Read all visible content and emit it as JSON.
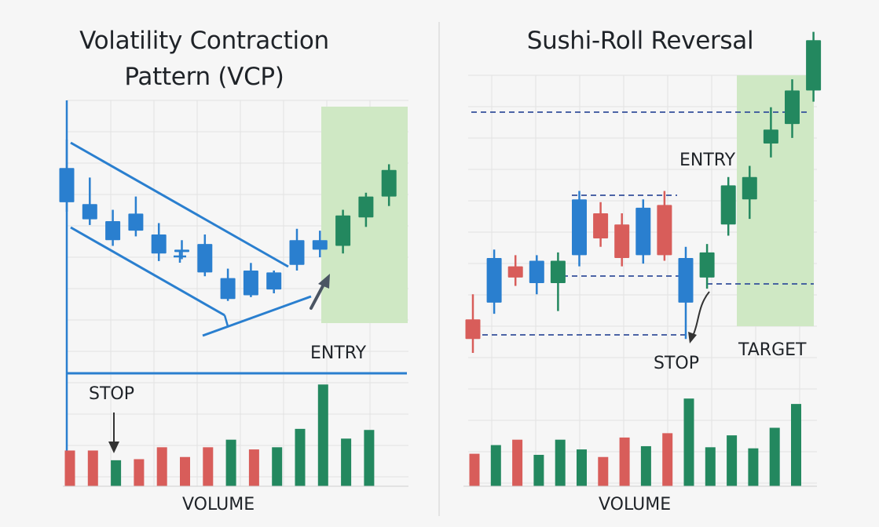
{
  "colors": {
    "blue": "#2a7fcf",
    "green": "#23885f",
    "red": "#d85d5a",
    "line": "#2a7fcf",
    "target_zone": "#cfe8c4",
    "dashed": "#34509a"
  },
  "charts": [
    {
      "id": "vcp",
      "title": "Volatility Contraction Pattern (VCP)",
      "title_lines": [
        "Volatility Contraction",
        "Pattern (VCP)"
      ],
      "labels": {
        "entry": "ENTRY",
        "stop": "STOP",
        "volume": "VOLUME"
      },
      "chart_data": {
        "type": "candlestick",
        "price_range": [
          0,
          100
        ],
        "volume_range": [
          0,
          100
        ],
        "grid": true,
        "candles": [
          {
            "o": 85,
            "h": 100,
            "l": 62,
            "c": 67,
            "color": "blue"
          },
          {
            "o": 66,
            "h": 80,
            "l": 55,
            "c": 58,
            "color": "blue"
          },
          {
            "o": 57,
            "h": 63,
            "l": 44,
            "c": 47,
            "color": "blue"
          },
          {
            "o": 61,
            "h": 70,
            "l": 49,
            "c": 52,
            "color": "blue"
          },
          {
            "o": 50,
            "h": 56,
            "l": 36,
            "c": 40,
            "color": "blue"
          },
          {
            "o": 42,
            "h": 47,
            "l": 37,
            "c": 41,
            "color": "blue"
          },
          {
            "o": 45,
            "h": 50,
            "l": 28,
            "c": 30,
            "color": "blue"
          },
          {
            "o": 27,
            "h": 32,
            "l": 15,
            "c": 16,
            "color": "blue"
          },
          {
            "o": 31,
            "h": 35,
            "l": 17,
            "c": 18,
            "color": "blue"
          },
          {
            "o": 30,
            "h": 31,
            "l": 19,
            "c": 21,
            "color": "blue"
          },
          {
            "o": 47,
            "h": 53,
            "l": 31,
            "c": 34,
            "color": "blue"
          },
          {
            "o": 47,
            "h": 52,
            "l": 38,
            "c": 42,
            "color": "blue"
          },
          {
            "o": 44,
            "h": 63,
            "l": 40,
            "c": 60,
            "color": "green"
          },
          {
            "o": 59,
            "h": 72,
            "l": 54,
            "c": 70,
            "color": "green"
          },
          {
            "o": 70,
            "h": 87,
            "l": 65,
            "c": 84,
            "color": "green"
          }
        ],
        "volume": [
          {
            "v": 33,
            "color": "red"
          },
          {
            "v": 33,
            "color": "red"
          },
          {
            "v": 24,
            "color": "green"
          },
          {
            "v": 25,
            "color": "red"
          },
          {
            "v": 36,
            "color": "red"
          },
          {
            "v": 27,
            "color": "red"
          },
          {
            "v": 36,
            "color": "red"
          },
          {
            "v": 43,
            "color": "green"
          },
          {
            "v": 34,
            "color": "red"
          },
          {
            "v": 36,
            "color": "green"
          },
          {
            "v": 53,
            "color": "green"
          },
          {
            "v": 94,
            "color": "green"
          },
          {
            "v": 44,
            "color": "green"
          },
          {
            "v": 52,
            "color": "green"
          }
        ],
        "annotations": [
          "ENTRY",
          "STOP",
          "VOLUME"
        ]
      }
    },
    {
      "id": "sushi",
      "title": "Sushi-Roll Reversal",
      "labels": {
        "entry": "ENTRY",
        "stop": "STOP",
        "target": "TARGET",
        "volume": "VOLUME"
      },
      "chart_data": {
        "type": "candlestick",
        "price_range": [
          0,
          100
        ],
        "volume_range": [
          0,
          100
        ],
        "grid": true,
        "candles": [
          {
            "o": 12,
            "h": 21,
            "l": 0,
            "c": 5,
            "color": "red"
          },
          {
            "o": 18,
            "h": 37,
            "l": 14,
            "c": 34,
            "color": "blue"
          },
          {
            "o": 31,
            "h": 35,
            "l": 24,
            "c": 27,
            "color": "red"
          },
          {
            "o": 25,
            "h": 35,
            "l": 21,
            "c": 33,
            "color": "blue"
          },
          {
            "o": 25,
            "h": 36,
            "l": 15,
            "c": 33,
            "color": "green"
          },
          {
            "o": 35,
            "h": 58,
            "l": 31,
            "c": 55,
            "color": "blue"
          },
          {
            "o": 50,
            "h": 54,
            "l": 38,
            "c": 41,
            "color": "red"
          },
          {
            "o": 46,
            "h": 50,
            "l": 31,
            "c": 34,
            "color": "red"
          },
          {
            "o": 35,
            "h": 55,
            "l": 32,
            "c": 52,
            "color": "blue"
          },
          {
            "o": 53,
            "h": 58,
            "l": 33,
            "c": 35,
            "color": "red"
          },
          {
            "o": 34,
            "h": 38,
            "l": 5,
            "c": 18,
            "color": "blue"
          },
          {
            "o": 27,
            "h": 39,
            "l": 23,
            "c": 36,
            "color": "green"
          },
          {
            "o": 46,
            "h": 63,
            "l": 42,
            "c": 60,
            "color": "green"
          },
          {
            "o": 55,
            "h": 67,
            "l": 48,
            "c": 63,
            "color": "green"
          },
          {
            "o": 75,
            "h": 88,
            "l": 70,
            "c": 80,
            "color": "green"
          },
          {
            "o": 82,
            "h": 98,
            "l": 77,
            "c": 94,
            "color": "green"
          },
          {
            "o": 94,
            "h": 115,
            "l": 90,
            "c": 112,
            "color": "green"
          }
        ],
        "volume": [
          {
            "v": 30,
            "color": "red"
          },
          {
            "v": 38,
            "color": "green"
          },
          {
            "v": 43,
            "color": "red"
          },
          {
            "v": 29,
            "color": "green"
          },
          {
            "v": 43,
            "color": "green"
          },
          {
            "v": 34,
            "color": "green"
          },
          {
            "v": 27,
            "color": "red"
          },
          {
            "v": 45,
            "color": "red"
          },
          {
            "v": 37,
            "color": "green"
          },
          {
            "v": 49,
            "color": "red"
          },
          {
            "v": 81,
            "color": "green"
          },
          {
            "v": 36,
            "color": "green"
          },
          {
            "v": 47,
            "color": "green"
          },
          {
            "v": 35,
            "color": "green"
          },
          {
            "v": 54,
            "color": "green"
          },
          {
            "v": 76,
            "color": "green"
          }
        ],
        "annotations": [
          "ENTRY",
          "STOP",
          "TARGET",
          "VOLUME"
        ]
      }
    }
  ]
}
